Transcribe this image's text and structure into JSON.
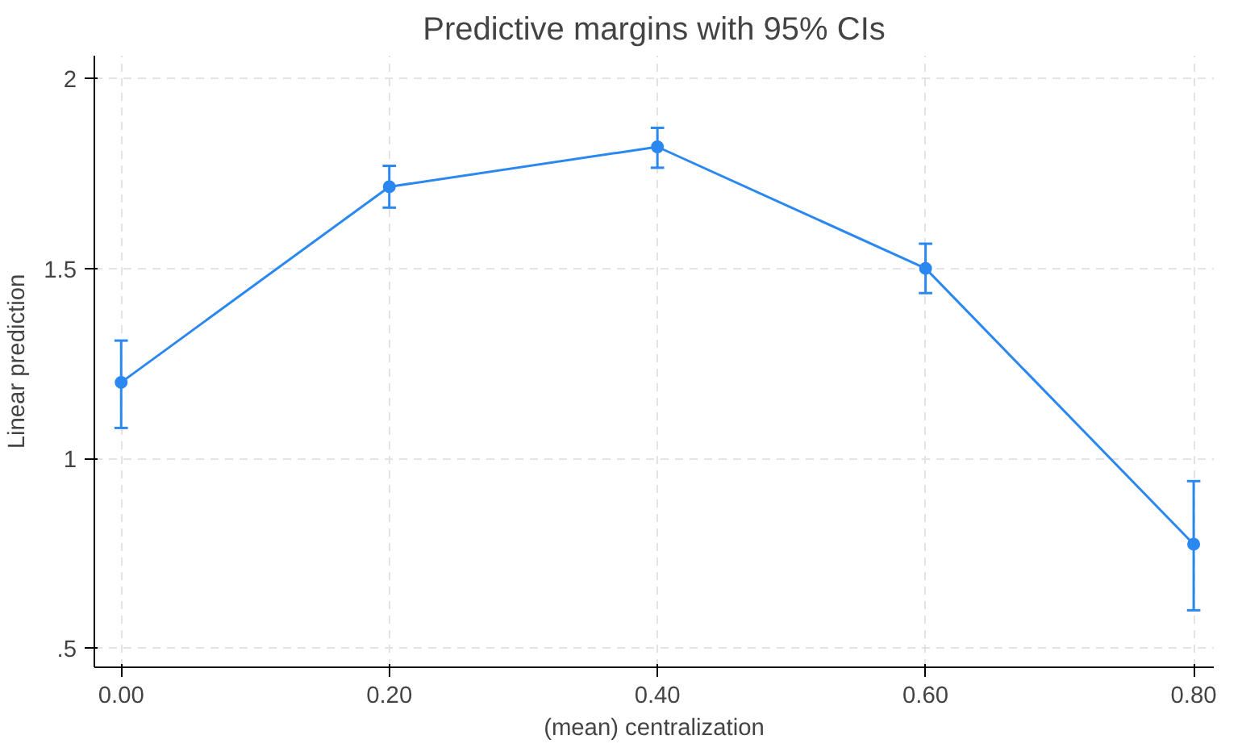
{
  "chart_data": {
    "type": "line",
    "title": "Predictive margins with 95% CIs",
    "xlabel": "(mean) centralization",
    "ylabel": "Linear prediction",
    "x": [
      0,
      0.2,
      0.4,
      0.6,
      0.8
    ],
    "series": [
      {
        "color": "#2a88f0",
        "values": [
          1.2,
          1.715,
          1.82,
          1.5,
          0.774
        ],
        "errors": [
          [
            1.08,
            1.31
          ],
          [
            1.66,
            1.77
          ],
          [
            1.765,
            1.87
          ],
          [
            1.435,
            1.565
          ],
          [
            0.6,
            0.94
          ]
        ]
      }
    ],
    "xlim": [
      -0.02,
      0.815
    ],
    "ylim": [
      0.45,
      2.06
    ],
    "xticks": [
      {
        "value": 0,
        "label": "0.00"
      },
      {
        "value": 0.2,
        "label": "0.20"
      },
      {
        "value": 0.4,
        "label": "0.40"
      },
      {
        "value": 0.6,
        "label": "0.60"
      },
      {
        "value": 0.8,
        "label": "0.80"
      }
    ],
    "yticks": [
      {
        "value": 0.5,
        "label": ".5"
      },
      1,
      1.5,
      2
    ],
    "grid": true,
    "marker": "circle",
    "line_style": "solid"
  }
}
